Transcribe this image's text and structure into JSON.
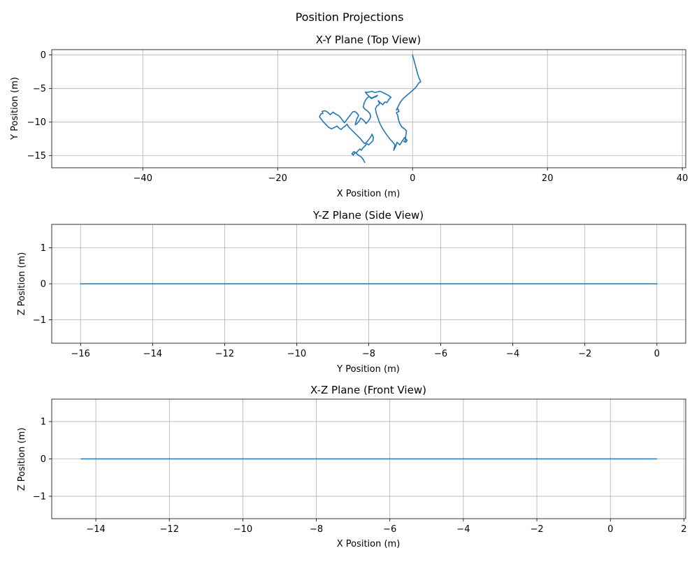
{
  "figure": {
    "title": "Position Projections"
  },
  "colors": {
    "series": "#1f77b4",
    "grid": "#b0b0b0",
    "frame": "#000000"
  },
  "chart_data": [
    {
      "type": "line",
      "title": "X-Y Plane (Top View)",
      "xlabel": "X Position (m)",
      "ylabel": "Y Position (m)",
      "xlim": [
        -53.5,
        40.5
      ],
      "ylim": [
        -16.8,
        0.8
      ],
      "xticks": [
        -40,
        -20,
        0,
        20,
        40
      ],
      "yticks": [
        -15,
        -10,
        -5,
        0
      ],
      "grid": true,
      "series": [
        {
          "x": [
            0,
            0.4,
            0.8,
            1.2,
            0.9,
            0.5,
            0.1,
            -0.6,
            -1.3,
            -1.8,
            -2.1,
            -2.4,
            -2.2,
            -2.0,
            -2.4,
            -2.2,
            -2.1,
            -1.9,
            -1.6,
            -1.2,
            -0.9,
            -1.0,
            -1.1,
            -1.3,
            -1.0,
            -0.8,
            -1.2,
            -1.5,
            -1.9,
            -2.3,
            -2.5,
            -2.8,
            -2.6,
            -3.0,
            -3.3,
            -3.6,
            -3.9,
            -4.3,
            -4.7,
            -5.0,
            -5.2,
            -5.4,
            -5.5,
            -5.3,
            -5.0,
            -4.9,
            -5.1,
            -4.7,
            -4.4,
            -4.1,
            -3.8,
            -3.5,
            -3.2,
            -3.6,
            -4.0,
            -4.4,
            -4.8,
            -5.2,
            -5.6,
            -6.0,
            -6.4,
            -6.8,
            -7.0,
            -6.8,
            -6.5,
            -6.1,
            -5.7,
            -5.4,
            -5.2,
            -5.6,
            -6.0,
            -6.5,
            -6.9,
            -7.2,
            -7.3,
            -7.0,
            -6.6,
            -6.3,
            -6.2,
            -6.4,
            -6.7,
            -6.9,
            -7.1,
            -7.4,
            -7.7,
            -7.9,
            -8.2,
            -8.5,
            -8.3,
            -8.0,
            -8.3,
            -8.6,
            -8.9,
            -9.2,
            -9.5,
            -9.8,
            -10.1,
            -10.4,
            -10.7,
            -11.0,
            -11.4,
            -11.8,
            -12.2,
            -12.6,
            -13.0,
            -13.4,
            -13.3,
            -13.6,
            -13.8,
            -13.5,
            -13.2,
            -12.8,
            -12.4,
            -12.0,
            -11.6,
            -11.2,
            -10.9,
            -10.6,
            -10.3,
            -10.0,
            -9.7,
            -9.5,
            -9.2,
            -8.9,
            -8.6,
            -8.3,
            -8.0,
            -7.7,
            -7.4,
            -7.1,
            -6.8,
            -6.5,
            -6.2,
            -6.0,
            -5.8,
            -5.9,
            -6.2,
            -6.5,
            -6.8,
            -7.0,
            -7.2,
            -7.4,
            -7.6,
            -7.8,
            -8.1,
            -8.4,
            -8.7,
            -9.0,
            -8.8,
            -8.5,
            -8.2,
            -7.9,
            -7.6,
            -7.3,
            -7.1
          ],
          "y": [
            0,
            -1.5,
            -3.0,
            -4.0,
            -4.2,
            -4.8,
            -5.2,
            -5.8,
            -6.4,
            -7.0,
            -7.6,
            -8.2,
            -8.0,
            -8.4,
            -8.6,
            -9.0,
            -9.6,
            -10.2,
            -10.7,
            -11.0,
            -11.3,
            -12.0,
            -12.8,
            -12.9,
            -13.0,
            -12.7,
            -12.3,
            -12.8,
            -13.4,
            -13.0,
            -13.6,
            -14.2,
            -13.4,
            -12.9,
            -12.6,
            -12.2,
            -11.8,
            -11.2,
            -10.5,
            -9.8,
            -9.2,
            -8.6,
            -8.0,
            -7.6,
            -7.4,
            -7.2,
            -6.8,
            -7.2,
            -7.4,
            -7.0,
            -7.1,
            -6.6,
            -6.3,
            -6.0,
            -5.8,
            -5.6,
            -5.4,
            -5.5,
            -5.6,
            -5.4,
            -5.5,
            -5.6,
            -5.5,
            -5.8,
            -6.1,
            -6.5,
            -6.3,
            -6.2,
            -6.0,
            -6.2,
            -6.4,
            -6.2,
            -6.6,
            -7.2,
            -7.8,
            -8.1,
            -8.4,
            -8.8,
            -9.2,
            -9.6,
            -10.0,
            -10.2,
            -9.9,
            -9.6,
            -9.4,
            -9.8,
            -10.2,
            -10.4,
            -9.6,
            -9.0,
            -8.6,
            -8.4,
            -8.5,
            -8.9,
            -9.3,
            -9.7,
            -10.1,
            -9.7,
            -9.3,
            -9.0,
            -8.8,
            -8.5,
            -8.9,
            -8.5,
            -8.3,
            -8.4,
            -8.7,
            -8.8,
            -9.2,
            -9.6,
            -10.0,
            -10.4,
            -10.8,
            -11.0,
            -10.8,
            -10.6,
            -10.9,
            -11.1,
            -10.8,
            -10.6,
            -10.3,
            -10.7,
            -11.0,
            -11.3,
            -11.6,
            -11.9,
            -12.2,
            -12.5,
            -12.9,
            -13.2,
            -13.0,
            -12.6,
            -12.2,
            -11.8,
            -12.3,
            -12.8,
            -13.1,
            -13.4,
            -13.2,
            -13.5,
            -13.7,
            -13.9,
            -14.2,
            -14.0,
            -14.3,
            -14.6,
            -14.4,
            -14.7,
            -14.9,
            -14.5,
            -14.8,
            -15.0,
            -15.2,
            -15.6,
            -16.0
          ]
        }
      ]
    },
    {
      "type": "line",
      "title": "Y-Z Plane (Side View)",
      "xlabel": "Y Position (m)",
      "ylabel": "Z Position (m)",
      "xlim": [
        -16.8,
        0.8
      ],
      "ylim": [
        -1.65,
        1.65
      ],
      "xticks": [
        -16,
        -14,
        -12,
        -10,
        -8,
        -6,
        -4,
        -2,
        0
      ],
      "yticks": [
        -1,
        0,
        1
      ],
      "grid": true,
      "series": [
        {
          "x": [
            0,
            -5.4,
            -16.0
          ],
          "y": [
            0,
            0,
            0
          ]
        }
      ]
    },
    {
      "type": "line",
      "title": "X-Z Plane (Front View)",
      "xlabel": "X Position (m)",
      "ylabel": "Z Position (m)",
      "xlim": [
        -15.2,
        2.05
      ],
      "ylim": [
        -1.6,
        1.6
      ],
      "xticks": [
        -14,
        -12,
        -10,
        -8,
        -6,
        -4,
        -2,
        0,
        2
      ],
      "yticks": [
        -1,
        0,
        1
      ],
      "grid": true,
      "series": [
        {
          "x": [
            1.26,
            0,
            -7.3,
            -14.4
          ],
          "y": [
            0,
            0,
            0,
            0
          ]
        }
      ]
    }
  ]
}
